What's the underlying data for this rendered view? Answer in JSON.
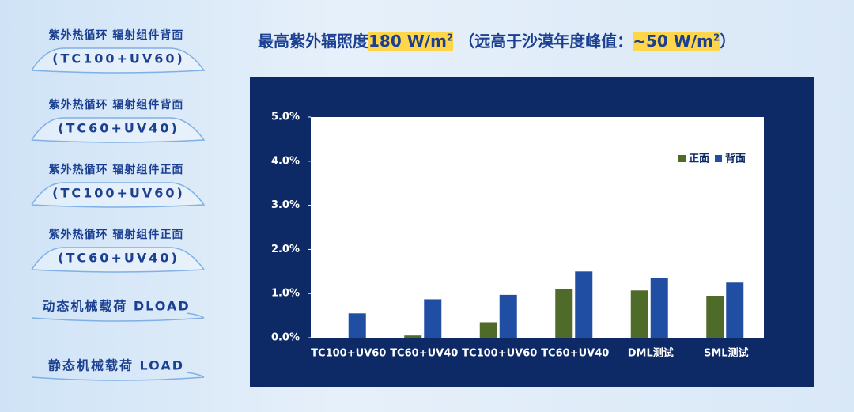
{
  "header": {
    "title": [
      "最高紫外辐照度",
      "180 W/m",
      "2",
      " （远高于沙漠年度峰值：",
      "~50 W/m",
      "2",
      "）"
    ]
  },
  "sidebar": [
    {
      "title": "紫外热循环 辐射组件背面",
      "label": "(TC100+UV60)"
    },
    {
      "title": "紫外热循环 辐射组件背面",
      "label": "(TC60+UV40)"
    },
    {
      "title": "紫外热循环 辐射组件正面",
      "label": "(TC100+UV60)"
    },
    {
      "title": "紫外热循环 辐射组件正面",
      "label": "(TC60+UV40)"
    },
    {
      "title": "动态机械载荷 DLOAD"
    },
    {
      "title": "静态机械载荷 LOAD"
    }
  ],
  "chart_data": {
    "type": "bar",
    "categories": [
      "TC100+UV60",
      "TC60+UV40",
      "TC100+UV60",
      "TC60+UV40",
      "DML测试",
      "SML测试"
    ],
    "series": [
      {
        "name": "正面",
        "color": "#4e6b2a",
        "values": [
          0,
          0.05,
          0.35,
          1.1,
          1.07,
          0.95
        ]
      },
      {
        "name": "背面",
        "color": "#1f4ea3",
        "values": [
          0.55,
          0.87,
          0.97,
          1.5,
          1.35,
          1.25
        ]
      }
    ],
    "ylim": [
      0,
      5
    ],
    "yticks": [
      {
        "value": 0,
        "label": "0.0%"
      },
      {
        "value": 1,
        "label": "1.0%"
      },
      {
        "value": 2,
        "label": "2.0%"
      },
      {
        "value": 3,
        "label": "3.0%"
      },
      {
        "value": 4,
        "label": "4.0%"
      },
      {
        "value": 5,
        "label": "5.0%"
      }
    ],
    "legend": "upper right"
  }
}
